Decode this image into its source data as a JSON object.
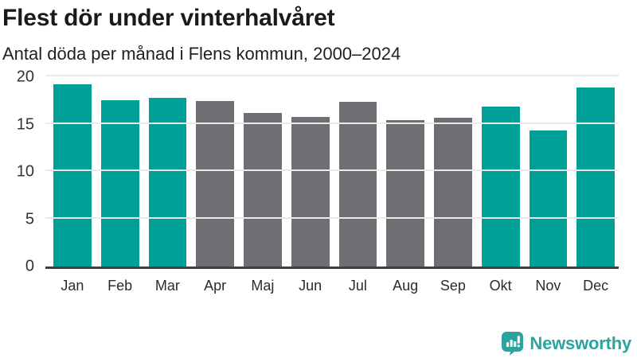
{
  "header": {
    "title": "Flest dör under vinterhalvåret",
    "subtitle": "Antal döda per månad i Flens kommun, 2000–2024"
  },
  "chart_data": {
    "type": "bar",
    "title": "Flest dör under vinterhalvåret",
    "subtitle": "Antal döda per månad i Flens kommun, 2000–2024",
    "categories": [
      "Jan",
      "Feb",
      "Mar",
      "Apr",
      "Maj",
      "Jun",
      "Jul",
      "Aug",
      "Sep",
      "Okt",
      "Nov",
      "Dec"
    ],
    "values": [
      19.3,
      17.6,
      17.8,
      17.5,
      16.2,
      15.8,
      17.4,
      15.5,
      15.7,
      16.9,
      14.4,
      18.9
    ],
    "bar_groups": [
      "winter",
      "winter",
      "winter",
      "summer",
      "summer",
      "summer",
      "summer",
      "summer",
      "summer",
      "winter",
      "winter",
      "winter"
    ],
    "series_colors": {
      "winter": "#00a096",
      "summer": "#6e6e73"
    },
    "xlabel": "",
    "ylabel": "",
    "ylim": [
      0,
      20
    ],
    "yticks": [
      0,
      5,
      10,
      15,
      20
    ],
    "grid": "horizontal",
    "legend": "none"
  },
  "colors": {
    "teal": "#00a096",
    "gray": "#6e6e73",
    "gridline": "#eaeaea",
    "axis": "#3f3f3f",
    "logo_teal": "#2ba49f"
  },
  "footer": {
    "brand": "Newsworthy"
  },
  "icons": {
    "logo": "newsworthy-bar-chart-speech-bubble-icon"
  }
}
